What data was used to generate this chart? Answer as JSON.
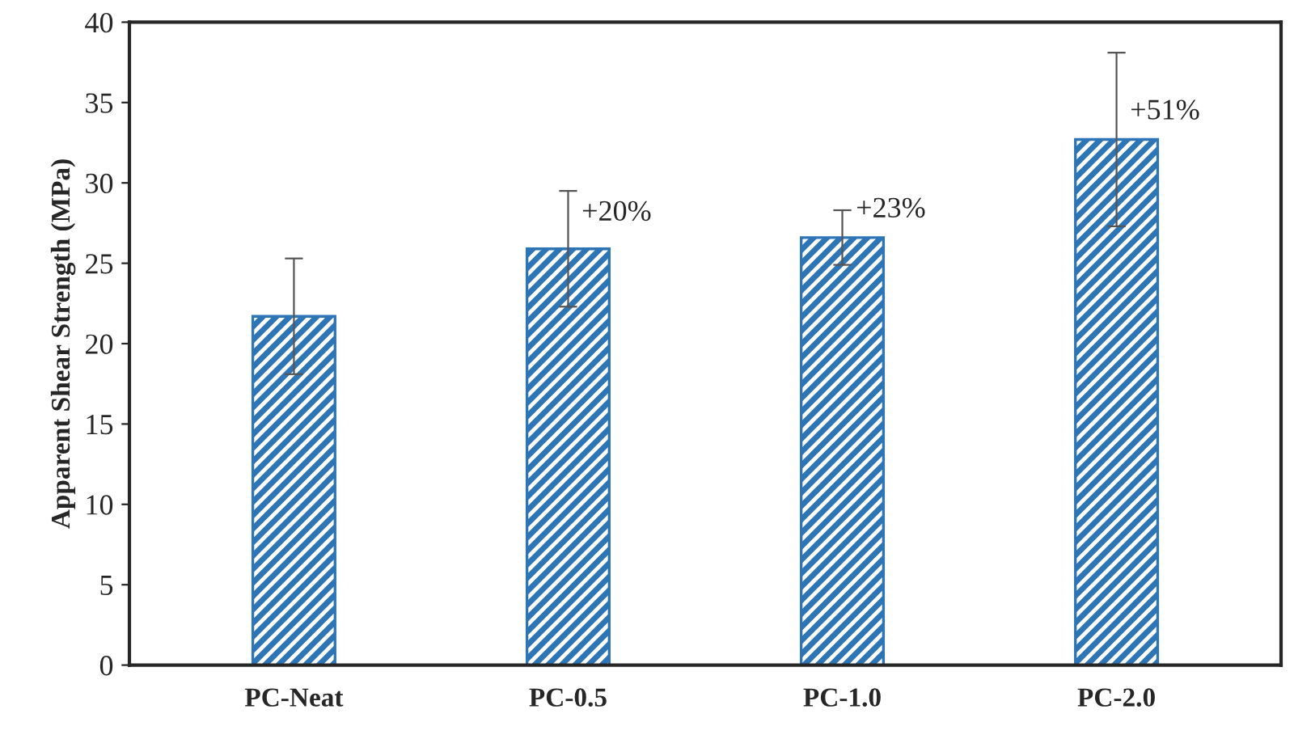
{
  "chart_data": {
    "type": "bar",
    "ylabel": "Apparent Shear Strength (MPa)",
    "categories": [
      "PC-Neat",
      "PC-0.5",
      "PC-1.0",
      "PC-2.0"
    ],
    "values": [
      21.7,
      25.9,
      26.6,
      32.7
    ],
    "errors": [
      3.6,
      3.6,
      1.7,
      5.4
    ],
    "color": "#2e75b6",
    "ylim": [
      0,
      40
    ],
    "yticks": [
      0,
      5,
      10,
      15,
      20,
      25,
      30,
      35,
      40
    ],
    "grid": false,
    "annotations": [
      {
        "text": "+20%",
        "x": "PC-0.5",
        "y": 28.1
      },
      {
        "text": "+23%",
        "x": "PC-1.0",
        "y": 28.3
      },
      {
        "text": "+51%",
        "x": "PC-2.0",
        "y": 34.4
      }
    ]
  }
}
